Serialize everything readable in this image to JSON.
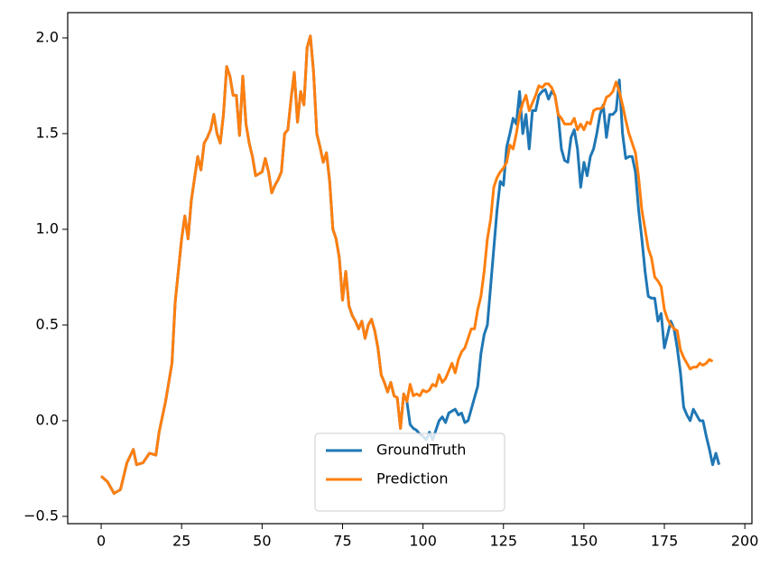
{
  "chart_data": {
    "type": "line",
    "x": [
      0,
      2,
      4,
      6,
      8,
      10,
      11,
      13,
      15,
      17,
      18,
      20,
      22,
      23,
      25,
      26,
      27,
      28,
      30,
      31,
      32,
      33,
      34,
      35,
      36,
      37,
      38,
      39,
      40,
      41,
      42,
      43,
      44,
      45,
      46,
      47,
      48,
      49,
      50,
      51,
      52,
      53,
      54,
      55,
      56,
      57,
      58,
      59,
      60,
      61,
      62,
      63,
      64,
      65,
      66,
      67,
      68,
      69,
      70,
      71,
      72,
      73,
      74,
      75,
      76,
      77,
      78,
      79,
      80,
      81,
      82,
      83,
      84,
      85,
      86,
      87,
      88,
      89,
      90,
      91,
      92,
      93,
      94,
      95,
      96,
      97,
      98,
      99,
      100,
      101,
      102,
      103,
      104,
      105,
      106,
      107,
      108,
      109,
      110,
      111,
      112,
      113,
      114,
      115,
      116,
      117,
      118,
      119,
      120,
      121,
      122,
      123,
      124,
      125,
      126,
      127,
      128,
      129,
      130,
      131,
      132,
      133,
      134,
      135,
      136,
      137,
      138,
      139,
      140,
      141,
      142,
      143,
      144,
      145,
      146,
      147,
      148,
      149,
      150,
      151,
      152,
      153,
      154,
      155,
      156,
      157,
      158,
      159,
      160,
      161,
      162,
      163,
      164,
      165,
      166,
      167,
      168,
      169,
      170,
      171,
      172,
      173,
      174,
      175,
      176,
      177,
      178,
      179,
      180,
      181,
      182,
      183,
      184,
      185,
      186,
      187,
      188,
      189,
      190,
      191,
      192
    ],
    "series": [
      {
        "name": "GroundTruth",
        "color": "#1f77b4",
        "values": [
          -0.29,
          -0.32,
          -0.38,
          -0.36,
          -0.22,
          -0.15,
          -0.23,
          -0.22,
          -0.17,
          -0.18,
          -0.06,
          0.1,
          0.3,
          0.62,
          0.95,
          1.07,
          0.95,
          1.15,
          1.38,
          1.31,
          1.45,
          1.48,
          1.52,
          1.6,
          1.5,
          1.45,
          1.6,
          1.85,
          1.8,
          1.7,
          1.7,
          1.49,
          1.8,
          1.55,
          1.45,
          1.38,
          1.28,
          1.29,
          1.3,
          1.37,
          1.3,
          1.19,
          1.23,
          1.26,
          1.3,
          1.5,
          1.52,
          1.68,
          1.82,
          1.56,
          1.72,
          1.65,
          1.95,
          2.01,
          1.82,
          1.5,
          1.43,
          1.35,
          1.4,
          1.25,
          1.0,
          0.95,
          0.85,
          0.63,
          0.78,
          0.6,
          0.55,
          0.52,
          0.48,
          0.52,
          0.43,
          0.5,
          0.53,
          0.47,
          0.38,
          0.24,
          0.2,
          0.15,
          0.2,
          0.13,
          0.12,
          -0.04,
          0.14,
          0.1,
          -0.02,
          -0.04,
          -0.05,
          -0.07,
          -0.08,
          -0.1,
          -0.06,
          -0.1,
          -0.05,
          0.0,
          0.02,
          -0.01,
          0.04,
          0.05,
          0.06,
          0.03,
          0.04,
          -0.01,
          0.0,
          0.06,
          0.12,
          0.18,
          0.35,
          0.45,
          0.5,
          0.7,
          0.9,
          1.1,
          1.25,
          1.23,
          1.43,
          1.5,
          1.58,
          1.55,
          1.72,
          1.5,
          1.6,
          1.42,
          1.62,
          1.62,
          1.7,
          1.72,
          1.73,
          1.68,
          1.72,
          1.7,
          1.6,
          1.42,
          1.36,
          1.35,
          1.48,
          1.52,
          1.42,
          1.22,
          1.35,
          1.28,
          1.38,
          1.42,
          1.5,
          1.6,
          1.65,
          1.48,
          1.6,
          1.6,
          1.62,
          1.78,
          1.5,
          1.37,
          1.38,
          1.38,
          1.3,
          1.1,
          0.95,
          0.78,
          0.65,
          0.64,
          0.64,
          0.52,
          0.56,
          0.38,
          0.45,
          0.52,
          0.48,
          0.38,
          0.25,
          0.07,
          0.03,
          0.0,
          0.06,
          0.03,
          0.0,
          0.0,
          -0.08,
          -0.15,
          -0.23,
          -0.17,
          -0.23
        ]
      },
      {
        "name": "Prediction",
        "color": "#ff7f0e",
        "values": [
          -0.29,
          -0.32,
          -0.38,
          -0.36,
          -0.22,
          -0.15,
          -0.23,
          -0.22,
          -0.17,
          -0.18,
          -0.06,
          0.1,
          0.3,
          0.62,
          0.95,
          1.07,
          0.95,
          1.15,
          1.38,
          1.31,
          1.45,
          1.48,
          1.52,
          1.6,
          1.5,
          1.45,
          1.6,
          1.85,
          1.8,
          1.7,
          1.7,
          1.49,
          1.8,
          1.55,
          1.45,
          1.38,
          1.28,
          1.29,
          1.3,
          1.37,
          1.3,
          1.19,
          1.23,
          1.26,
          1.3,
          1.5,
          1.52,
          1.68,
          1.82,
          1.56,
          1.72,
          1.65,
          1.95,
          2.01,
          1.82,
          1.5,
          1.43,
          1.35,
          1.4,
          1.25,
          1.0,
          0.95,
          0.85,
          0.63,
          0.78,
          0.6,
          0.55,
          0.52,
          0.48,
          0.52,
          0.43,
          0.5,
          0.53,
          0.47,
          0.38,
          0.24,
          0.2,
          0.15,
          0.2,
          0.13,
          0.12,
          -0.04,
          0.14,
          0.1,
          0.19,
          0.13,
          0.14,
          0.13,
          0.16,
          0.15,
          0.16,
          0.19,
          0.18,
          0.24,
          0.2,
          0.22,
          0.26,
          0.3,
          0.25,
          0.32,
          0.36,
          0.38,
          0.43,
          0.48,
          0.48,
          0.58,
          0.65,
          0.78,
          0.95,
          1.05,
          1.22,
          1.27,
          1.3,
          1.32,
          1.35,
          1.44,
          1.42,
          1.5,
          1.6,
          1.66,
          1.7,
          1.62,
          1.66,
          1.7,
          1.75,
          1.74,
          1.76,
          1.76,
          1.74,
          1.7,
          1.6,
          1.58,
          1.55,
          1.55,
          1.55,
          1.58,
          1.52,
          1.55,
          1.52,
          1.56,
          1.55,
          1.62,
          1.63,
          1.63,
          1.64,
          1.69,
          1.7,
          1.72,
          1.77,
          1.72,
          1.65,
          1.57,
          1.5,
          1.45,
          1.4,
          1.27,
          1.1,
          1.0,
          0.9,
          0.85,
          0.75,
          0.73,
          0.7,
          0.58,
          0.53,
          0.5,
          0.48,
          0.47,
          0.37,
          0.33,
          0.3,
          0.27,
          0.28,
          0.28,
          0.3,
          0.29,
          0.3,
          0.32,
          0.31,
          null,
          null
        ]
      }
    ],
    "xlim": [
      -10.4,
      202.2
    ],
    "ylim": [
      -0.538,
      2.132
    ],
    "xticks": [
      0,
      25,
      50,
      75,
      100,
      125,
      150,
      175,
      200
    ],
    "yticks": [
      {
        "value": -0.5,
        "label": "−0.5"
      },
      {
        "value": 0.0,
        "label": "0.0"
      },
      0.5,
      {
        "value": 1.0,
        "label": "1.0"
      },
      1.5,
      {
        "value": 2.0,
        "label": "2.0"
      }
    ],
    "legend": "lower center"
  }
}
